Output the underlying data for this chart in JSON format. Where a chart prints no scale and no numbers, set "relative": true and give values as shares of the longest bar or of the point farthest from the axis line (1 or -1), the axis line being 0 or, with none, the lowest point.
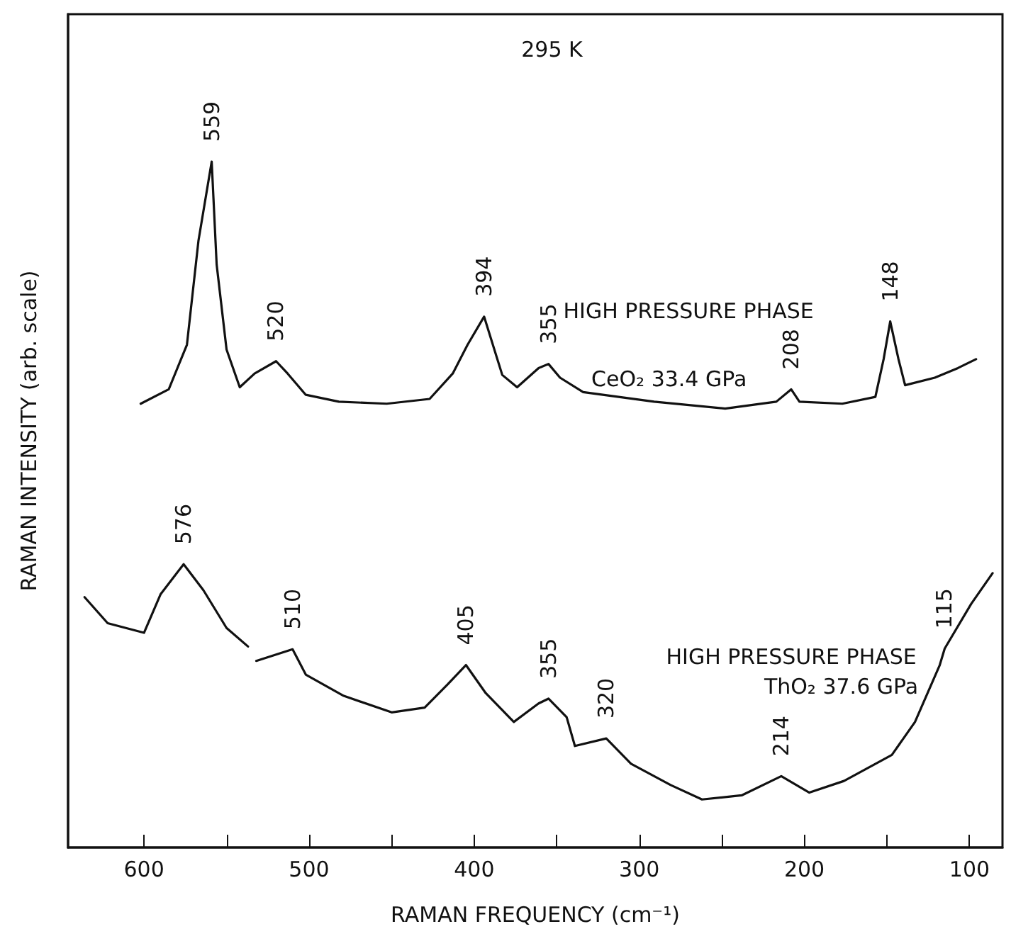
{
  "chart_data": {
    "type": "line",
    "relative": true,
    "xlabel": "RAMAN FREQUENCY (cm⁻¹)",
    "ylabel": "RAMAN INTENSITY (arb. scale)",
    "xlim": [
      646,
      80
    ],
    "xticks": [
      {
        "value": 600,
        "label": "600"
      },
      {
        "value": 550,
        "label": null
      },
      {
        "value": 500,
        "label": "500"
      },
      {
        "value": 450,
        "label": null
      },
      {
        "value": 400,
        "label": "400"
      },
      {
        "value": 350,
        "label": null
      },
      {
        "value": 300,
        "label": "300"
      },
      {
        "value": 250,
        "label": null
      },
      {
        "value": 200,
        "label": "200"
      },
      {
        "value": 150,
        "label": null
      },
      {
        "value": 100,
        "label": "100"
      }
    ],
    "tick_labels": "x",
    "grid": false,
    "legend": false,
    "marker": "none",
    "line_style": "solid",
    "series": [
      {
        "name": "CeO₂ 33.4 GPa",
        "color": "#111111",
        "x": [
          602,
          585,
          574,
          567,
          559,
          556,
          550,
          542,
          533,
          520,
          513,
          502,
          482,
          453,
          427,
          413,
          404,
          394,
          383,
          374,
          361,
          355,
          348,
          334,
          291,
          248,
          217,
          208,
          203,
          177,
          157,
          152,
          148,
          143,
          139,
          121,
          107,
          96
        ],
        "values": [
          0.647,
          0.668,
          0.733,
          0.885,
          1,
          0.85,
          0.726,
          0.671,
          0.691,
          0.709,
          0.691,
          0.66,
          0.65,
          0.647,
          0.654,
          0.691,
          0.733,
          0.774,
          0.689,
          0.671,
          0.699,
          0.705,
          0.685,
          0.664,
          0.65,
          0.64,
          0.65,
          0.668,
          0.65,
          0.647,
          0.657,
          0.712,
          0.767,
          0.712,
          0.674,
          0.685,
          0.699,
          0.712
        ]
      },
      {
        "name": "ThO₂ 37.6 GPa",
        "color": "#111111",
        "x": [
          636,
          622,
          600,
          590,
          576,
          564,
          550,
          537,
          535,
          532,
          510,
          502,
          479,
          450,
          430,
          416,
          405,
          393,
          376,
          361,
          355,
          344,
          339,
          320,
          305,
          281,
          262,
          238,
          214,
          197,
          176,
          147,
          133,
          118,
          115,
          99,
          86
        ],
        "values": [
          0.365,
          0.327,
          0.313,
          0.369,
          0.413,
          0.375,
          0.32,
          0.293,
          null,
          0.272,
          0.289,
          0.252,
          0.221,
          0.197,
          0.204,
          0.238,
          0.266,
          0.225,
          0.183,
          0.21,
          0.217,
          0.19,
          0.148,
          0.159,
          0.122,
          0.091,
          0.07,
          0.076,
          0.104,
          0.08,
          0.097,
          0.135,
          0.183,
          0.266,
          0.29,
          0.355,
          0.4
        ]
      }
    ],
    "annotations": [
      "295 K",
      "HIGH PRESSURE PHASE",
      "HIGH PRESSURE PHASE",
      {
        "text": "559",
        "x": 559,
        "y": 1
      },
      {
        "text": "520",
        "x": 520,
        "y": 0.709
      },
      {
        "text": "394",
        "x": 394,
        "y": 0.774
      },
      {
        "text": "355",
        "x": 355,
        "y": 0.705
      },
      {
        "text": "208",
        "x": 208,
        "y": 0.668
      },
      {
        "text": "148",
        "x": 148,
        "y": 0.767
      },
      {
        "text": "576",
        "x": 576,
        "y": 0.413
      },
      {
        "text": "510",
        "x": 510,
        "y": 0.289
      },
      {
        "text": "405",
        "x": 405,
        "y": 0.266
      },
      {
        "text": "355",
        "x": 355,
        "y": 0.217
      },
      {
        "text": "320",
        "x": 320,
        "y": 0.159
      },
      {
        "text": "214",
        "x": 214,
        "y": 0.104
      },
      {
        "text": "115",
        "x": 115,
        "y": 0.29
      }
    ]
  }
}
